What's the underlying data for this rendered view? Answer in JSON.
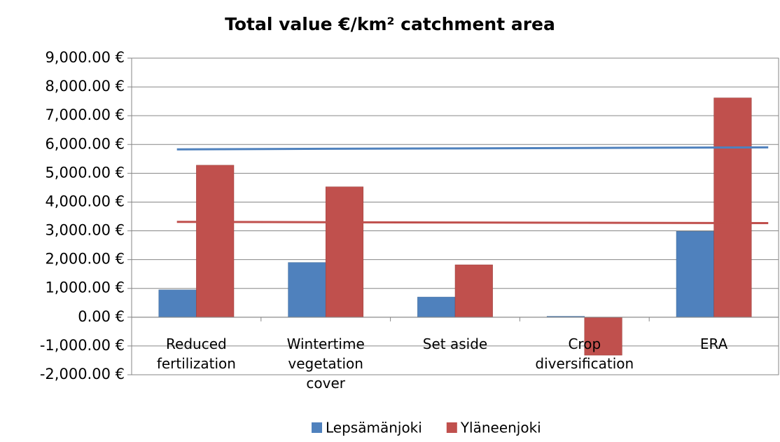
{
  "chart_data": {
    "type": "bar",
    "title": "Total value €/km² catchment area",
    "categories": [
      "Reduced fertilization",
      "Wintertime vegetation cover",
      "Set aside",
      "Crop diversification",
      "ERA"
    ],
    "series": [
      {
        "name": "Lepsämänjoki",
        "color": "#4f81bd",
        "values": [
          950,
          1900,
          700,
          30,
          2980
        ]
      },
      {
        "name": "Yläneenjoki",
        "color": "#c0504d",
        "values": [
          5280,
          4530,
          1820,
          -1320,
          7620
        ]
      }
    ],
    "lines": [
      {
        "color": "#4f81bd",
        "values": [
          5830,
          5850,
          5865,
          5880,
          5900
        ]
      },
      {
        "color": "#c0504d",
        "values": [
          3310,
          3300,
          3290,
          3280,
          3270
        ]
      }
    ],
    "ylim": [
      -2000,
      9000
    ],
    "yticks": [
      {
        "value": -2000,
        "label": "-2,000.00 €"
      },
      {
        "value": -1000,
        "label": "-1,000.00 €"
      },
      {
        "value": 0,
        "label": "0.00 €"
      },
      {
        "value": 1000,
        "label": "1,000.00 €"
      },
      {
        "value": 2000,
        "label": "2,000.00 €"
      },
      {
        "value": 3000,
        "label": "3,000.00 €"
      },
      {
        "value": 4000,
        "label": "4,000.00 €"
      },
      {
        "value": 5000,
        "label": "5,000.00 €"
      },
      {
        "value": 6000,
        "label": "6,000.00 €"
      },
      {
        "value": 7000,
        "label": "7,000.00 €"
      },
      {
        "value": 8000,
        "label": "8,000.00 €"
      },
      {
        "value": 9000,
        "label": "9,000.00 €"
      }
    ],
    "grid": true
  }
}
